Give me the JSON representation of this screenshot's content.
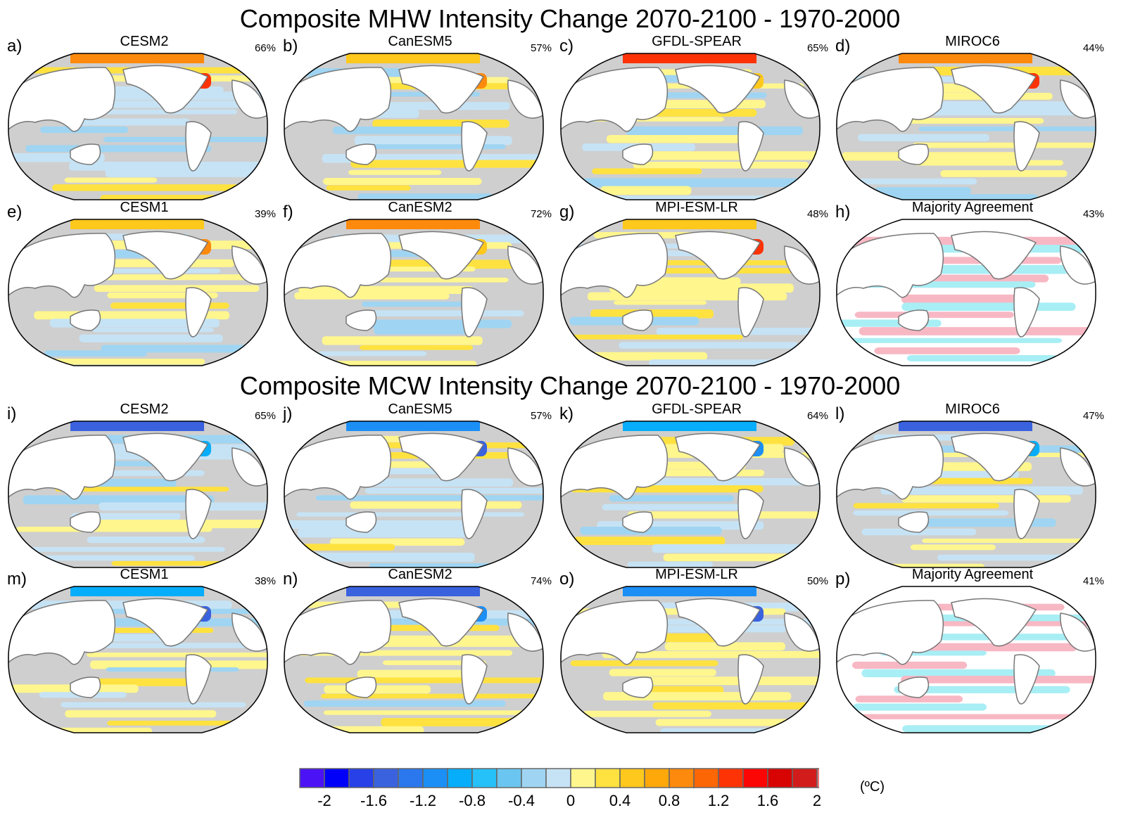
{
  "chart_data": [
    {
      "type": "heatmap",
      "title": "Composite MHW Intensity Change 2070-2100 - 1970-2000",
      "panels": [
        {
          "letter": "a)",
          "model": "CESM2",
          "percent": "66%",
          "kind": "model"
        },
        {
          "letter": "b)",
          "model": "CanESM5",
          "percent": "57%",
          "kind": "model"
        },
        {
          "letter": "c)",
          "model": "GFDL-SPEAR",
          "percent": "65%",
          "kind": "model"
        },
        {
          "letter": "d)",
          "model": "MIROC6",
          "percent": "44%",
          "kind": "model"
        },
        {
          "letter": "e)",
          "model": "CESM1",
          "percent": "39%",
          "kind": "model"
        },
        {
          "letter": "f)",
          "model": "CanESM2",
          "percent": "72%",
          "kind": "model"
        },
        {
          "letter": "g)",
          "model": "MPI-ESM-LR",
          "percent": "48%",
          "kind": "model"
        },
        {
          "letter": "h)",
          "model": "Majority Agreement",
          "percent": "43%",
          "kind": "agreement"
        }
      ]
    },
    {
      "type": "heatmap",
      "title": "Composite MCW Intensity Change 2070-2100 - 1970-2000",
      "panels": [
        {
          "letter": "i)",
          "model": "CESM2",
          "percent": "65%",
          "kind": "model"
        },
        {
          "letter": "j)",
          "model": "CanESM5",
          "percent": "57%",
          "kind": "model"
        },
        {
          "letter": "k)",
          "model": "GFDL-SPEAR",
          "percent": "64%",
          "kind": "model"
        },
        {
          "letter": "l)",
          "model": "MIROC6",
          "percent": "47%",
          "kind": "model"
        },
        {
          "letter": "m)",
          "model": "CESM1",
          "percent": "38%",
          "kind": "model"
        },
        {
          "letter": "n)",
          "model": "CanESM2",
          "percent": "74%",
          "kind": "model"
        },
        {
          "letter": "o)",
          "model": "MPI-ESM-LR",
          "percent": "50%",
          "kind": "model"
        },
        {
          "letter": "p)",
          "model": "Majority Agreement",
          "percent": "41%",
          "kind": "agreement"
        }
      ]
    }
  ],
  "colorbar": {
    "unit": "(ºC)",
    "tick_labels": [
      "-2",
      "-1.6",
      "-1.2",
      "-0.8",
      "-0.4",
      "0",
      "0.4",
      "0.8",
      "1.2",
      "1.6",
      "2"
    ],
    "colors": [
      "#4b12f5",
      "#0000fa",
      "#2740e8",
      "#3a62de",
      "#2b78ee",
      "#1b8ff6",
      "#06adfa",
      "#26c1f8",
      "#6ac6f0",
      "#9fd5f2",
      "#c6e3f5",
      "#fff68e",
      "#ffe23f",
      "#fec81c",
      "#fea80a",
      "#fd8a0c",
      "#fc6605",
      "#fd3306",
      "#fb0505",
      "#d80303",
      "#d21c1c",
      "#f07676"
    ],
    "range": [
      -2.2,
      2.2
    ],
    "step": 0.2
  },
  "map_colors": {
    "land": "#ffffff",
    "coast": "#777777",
    "insignificant": "#cfcfcf",
    "agree_positive": "#f7b8c4",
    "agree_negative": "#a8eef5"
  }
}
